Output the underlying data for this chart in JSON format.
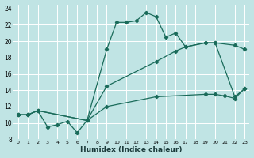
{
  "xlabel": "Humidex (Indice chaleur)",
  "bg_color": "#c0e4e4",
  "grid_color": "#ffffff",
  "line_color": "#1a6b5a",
  "xlim": [
    -0.5,
    23.5
  ],
  "ylim": [
    8,
    24.5
  ],
  "xticks": [
    0,
    1,
    2,
    3,
    4,
    5,
    6,
    7,
    8,
    9,
    10,
    11,
    12,
    13,
    14,
    15,
    16,
    17,
    18,
    19,
    20,
    21,
    22,
    23
  ],
  "yticks": [
    8,
    10,
    12,
    14,
    16,
    18,
    20,
    22,
    24
  ],
  "main_x": [
    0,
    1,
    2,
    3,
    4,
    5,
    6,
    7,
    9,
    10,
    11,
    12,
    13,
    14,
    15,
    16,
    17,
    19,
    20,
    22,
    23
  ],
  "main_y": [
    11,
    11,
    11.5,
    9.5,
    9.8,
    10.2,
    8.8,
    10.3,
    19.0,
    22.3,
    22.3,
    22.5,
    23.5,
    23.0,
    20.5,
    21.0,
    19.3,
    19.8,
    19.8,
    13.2,
    14.2
  ],
  "upper_x": [
    0,
    1,
    2,
    7,
    9,
    14,
    16,
    17,
    19,
    20,
    22,
    23
  ],
  "upper_y": [
    11,
    11,
    11.5,
    10.3,
    14.5,
    17.5,
    18.8,
    19.3,
    19.8,
    19.8,
    19.5,
    19.0
  ],
  "lower_x": [
    0,
    1,
    2,
    7,
    9,
    14,
    19,
    20,
    21,
    22,
    23
  ],
  "lower_y": [
    11,
    11,
    11.5,
    10.3,
    12.0,
    13.2,
    13.5,
    13.5,
    13.3,
    13.0,
    14.2
  ]
}
